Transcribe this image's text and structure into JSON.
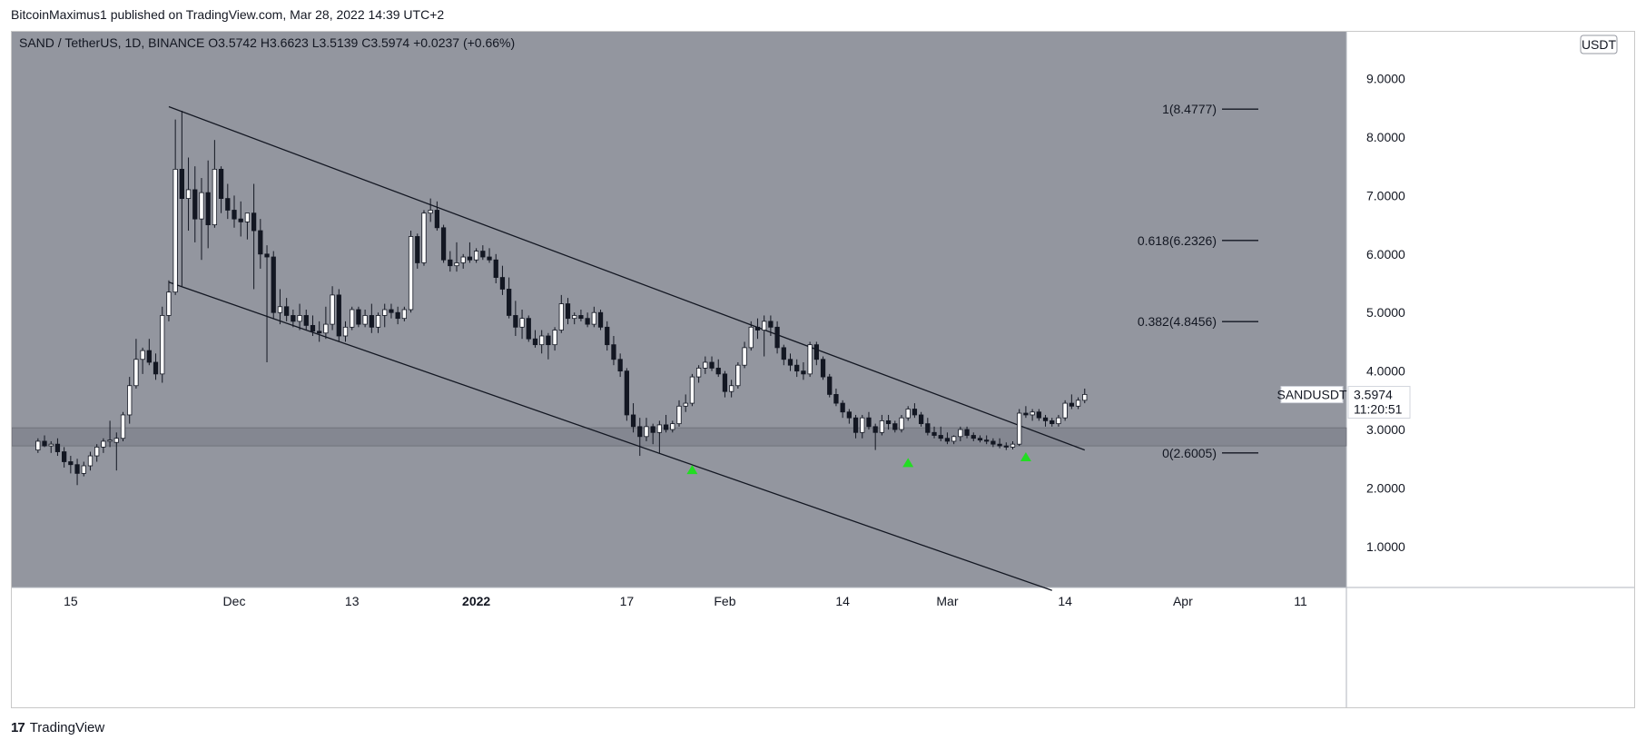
{
  "header": {
    "publisher_line": "BitcoinMaximus1 published on TradingView.com, Mar 28, 2022 14:39 UTC+2"
  },
  "footer": {
    "brand": "TradingView",
    "logo_glyph": "17"
  },
  "colors": {
    "plot_bg": "#93969f",
    "up_candle": "#ffffff",
    "down_candle": "#131722",
    "support_zone": "#7f838d",
    "trend_line": "#131722",
    "arrow": "#22dd22",
    "price_label_bg": "#ffffff"
  },
  "chart_data": {
    "type": "candlestick",
    "symbol": "SAND / TetherUS, 1D, BINANCE",
    "ohlc_legend": {
      "o_label": "O",
      "o": "3.5742",
      "h_label": "H",
      "h": "3.6623",
      "l_label": "L",
      "l": "3.5139",
      "c_label": "C",
      "c": "3.5974",
      "change": "+0.0237 (+0.66%)"
    },
    "currency_badge": "USDT",
    "price_label": {
      "ticker": "SANDUSDT",
      "price": "3.5974",
      "countdown": "11:20:51"
    },
    "y_axis": {
      "range": [
        0.3,
        9.8
      ],
      "ticks": [
        "9.0000",
        "8.0000",
        "7.0000",
        "6.0000",
        "5.0000",
        "4.0000",
        "3.0000",
        "2.0000",
        "1.0000"
      ],
      "tick_values": [
        9,
        8,
        7,
        6,
        5,
        4,
        3,
        2,
        1
      ]
    },
    "x_axis": {
      "ticks": [
        "15",
        "Dec",
        "13",
        "2022",
        "17",
        "Feb",
        "14",
        "Mar",
        "14",
        "Apr",
        "11"
      ],
      "tick_bar_index": [
        5,
        30,
        48,
        67,
        90,
        105,
        123,
        139,
        157,
        175,
        193
      ],
      "bold_ticks": [
        "2022"
      ],
      "bar_range": [
        -4,
        200
      ]
    },
    "fib_levels": [
      {
        "label": "1(8.4777)",
        "value": 8.4777
      },
      {
        "label": "0.618(6.2326)",
        "value": 6.2326
      },
      {
        "label": "0.382(4.8456)",
        "value": 4.8456
      },
      {
        "label": "0(2.6005)",
        "value": 2.6005
      }
    ],
    "support_zone": {
      "low": 2.72,
      "high": 3.03
    },
    "channel": {
      "upper_line": {
        "from": [
          20,
          8.52
        ],
        "to": [
          160,
          2.65
        ]
      },
      "lower_line": {
        "from": [
          20,
          5.52
        ],
        "to": [
          155,
          0.25
        ]
      }
    },
    "arrows_bar_index": [
      100,
      133,
      151
    ],
    "arrows_value": [
      2.3,
      2.42,
      2.52
    ],
    "candles": [
      [
        2.65,
        2.85,
        2.6,
        2.8
      ],
      [
        2.8,
        2.9,
        2.7,
        2.72
      ],
      [
        2.72,
        2.8,
        2.6,
        2.75
      ],
      [
        2.75,
        2.85,
        2.55,
        2.62
      ],
      [
        2.62,
        2.7,
        2.35,
        2.45
      ],
      [
        2.45,
        2.55,
        2.25,
        2.4
      ],
      [
        2.4,
        2.5,
        2.05,
        2.25
      ],
      [
        2.25,
        2.45,
        2.2,
        2.38
      ],
      [
        2.38,
        2.62,
        2.3,
        2.55
      ],
      [
        2.55,
        2.75,
        2.45,
        2.7
      ],
      [
        2.7,
        2.85,
        2.6,
        2.8
      ],
      [
        2.8,
        3.15,
        2.7,
        2.82
      ],
      [
        2.78,
        2.95,
        2.3,
        2.85
      ],
      [
        2.85,
        3.3,
        2.8,
        3.25
      ],
      [
        3.25,
        3.9,
        3.1,
        3.75
      ],
      [
        3.75,
        4.55,
        3.7,
        4.2
      ],
      [
        4.2,
        4.4,
        3.95,
        4.35
      ],
      [
        4.35,
        4.55,
        4.1,
        4.15
      ],
      [
        4.15,
        4.3,
        3.85,
        3.95
      ],
      [
        3.95,
        5.1,
        3.8,
        4.95
      ],
      [
        4.95,
        5.55,
        4.85,
        5.35
      ],
      [
        5.35,
        8.3,
        5.3,
        7.45
      ],
      [
        7.45,
        8.45,
        5.45,
        6.95
      ],
      [
        6.95,
        7.65,
        6.4,
        7.1
      ],
      [
        7.1,
        7.5,
        6.2,
        6.6
      ],
      [
        6.6,
        7.3,
        5.9,
        7.05
      ],
      [
        7.05,
        7.6,
        6.1,
        6.5
      ],
      [
        6.5,
        7.95,
        6.45,
        7.45
      ],
      [
        7.45,
        7.5,
        6.7,
        6.95
      ],
      [
        6.95,
        7.2,
        6.6,
        6.75
      ],
      [
        6.75,
        7.0,
        6.45,
        6.6
      ],
      [
        6.6,
        6.9,
        6.3,
        6.55
      ],
      [
        6.55,
        6.7,
        6.25,
        6.7
      ],
      [
        6.7,
        7.2,
        5.4,
        6.4
      ],
      [
        6.4,
        6.6,
        5.75,
        6.0
      ],
      [
        6.0,
        6.15,
        4.15,
        5.95
      ],
      [
        5.95,
        6.05,
        4.9,
        5.0
      ],
      [
        5.0,
        5.4,
        4.8,
        5.1
      ],
      [
        5.1,
        5.25,
        4.85,
        4.95
      ],
      [
        4.95,
        5.05,
        4.75,
        4.85
      ],
      [
        4.85,
        5.15,
        4.7,
        4.95
      ],
      [
        4.95,
        5.05,
        4.7,
        4.78
      ],
      [
        4.78,
        4.95,
        4.6,
        4.68
      ],
      [
        4.68,
        4.85,
        4.5,
        4.65
      ],
      [
        4.65,
        5.1,
        4.55,
        4.8
      ],
      [
        4.8,
        5.45,
        4.7,
        5.3
      ],
      [
        5.3,
        5.4,
        4.5,
        4.6
      ],
      [
        4.6,
        4.85,
        4.5,
        4.75
      ],
      [
        4.75,
        5.1,
        4.7,
        5.05
      ],
      [
        5.05,
        5.1,
        4.75,
        4.8
      ],
      [
        4.8,
        5.05,
        4.75,
        4.95
      ],
      [
        4.95,
        5.15,
        4.65,
        4.75
      ],
      [
        4.75,
        5.0,
        4.65,
        4.95
      ],
      [
        4.95,
        5.15,
        4.75,
        5.05
      ],
      [
        5.05,
        5.15,
        4.9,
        5.0
      ],
      [
        5.0,
        5.1,
        4.8,
        4.9
      ],
      [
        4.9,
        5.1,
        4.85,
        5.05
      ],
      [
        5.05,
        6.4,
        5.0,
        6.3
      ],
      [
        6.3,
        6.35,
        5.75,
        5.85
      ],
      [
        5.85,
        6.75,
        5.8,
        6.7
      ],
      [
        6.7,
        6.95,
        6.55,
        6.75
      ],
      [
        6.75,
        6.9,
        6.4,
        6.45
      ],
      [
        6.45,
        6.5,
        5.85,
        5.9
      ],
      [
        5.9,
        6.05,
        5.7,
        5.8
      ],
      [
        5.8,
        6.2,
        5.7,
        5.85
      ],
      [
        5.85,
        6.0,
        5.75,
        5.95
      ],
      [
        5.95,
        6.2,
        5.85,
        5.9
      ],
      [
        5.9,
        6.1,
        5.85,
        6.05
      ],
      [
        6.05,
        6.15,
        5.9,
        5.95
      ],
      [
        5.95,
        6.1,
        5.85,
        5.9
      ],
      [
        5.9,
        6.0,
        5.5,
        5.6
      ],
      [
        5.6,
        5.8,
        5.3,
        5.4
      ],
      [
        5.4,
        5.6,
        4.9,
        4.95
      ],
      [
        4.95,
        5.2,
        4.6,
        4.75
      ],
      [
        4.75,
        5.05,
        4.55,
        4.9
      ],
      [
        4.9,
        4.95,
        4.5,
        4.55
      ],
      [
        4.55,
        4.7,
        4.4,
        4.45
      ],
      [
        4.45,
        4.7,
        4.3,
        4.6
      ],
      [
        4.6,
        4.65,
        4.2,
        4.45
      ],
      [
        4.45,
        4.75,
        4.35,
        4.7
      ],
      [
        4.7,
        5.3,
        4.65,
        5.15
      ],
      [
        5.15,
        5.25,
        4.8,
        4.9
      ],
      [
        4.9,
        5.0,
        4.8,
        4.95
      ],
      [
        4.95,
        5.05,
        4.85,
        4.9
      ],
      [
        4.9,
        5.0,
        4.75,
        4.8
      ],
      [
        4.8,
        5.1,
        4.75,
        5.0
      ],
      [
        5.0,
        5.05,
        4.7,
        4.75
      ],
      [
        4.75,
        4.85,
        4.35,
        4.45
      ],
      [
        4.45,
        4.6,
        4.1,
        4.2
      ],
      [
        4.2,
        4.3,
        3.9,
        4.0
      ],
      [
        4.0,
        4.05,
        3.15,
        3.25
      ],
      [
        3.25,
        3.45,
        2.95,
        3.05
      ],
      [
        3.05,
        3.2,
        2.55,
        2.88
      ],
      [
        2.88,
        3.2,
        2.8,
        3.05
      ],
      [
        3.05,
        3.1,
        2.75,
        2.95
      ],
      [
        2.95,
        3.15,
        2.6,
        3.08
      ],
      [
        3.08,
        3.25,
        2.95,
        3.0
      ],
      [
        3.0,
        3.15,
        2.95,
        3.1
      ],
      [
        3.1,
        3.5,
        3.05,
        3.4
      ],
      [
        3.4,
        3.6,
        3.3,
        3.45
      ],
      [
        3.45,
        3.95,
        3.4,
        3.9
      ],
      [
        3.9,
        4.1,
        3.8,
        4.05
      ],
      [
        4.05,
        4.25,
        3.95,
        4.15
      ],
      [
        4.15,
        4.25,
        4.0,
        4.05
      ],
      [
        4.05,
        4.2,
        3.9,
        3.95
      ],
      [
        3.95,
        4.0,
        3.55,
        3.65
      ],
      [
        3.65,
        3.85,
        3.55,
        3.75
      ],
      [
        3.75,
        4.15,
        3.7,
        4.1
      ],
      [
        4.1,
        4.5,
        4.05,
        4.4
      ],
      [
        4.4,
        4.85,
        4.35,
        4.75
      ],
      [
        4.75,
        4.9,
        4.55,
        4.7
      ],
      [
        4.7,
        4.95,
        4.25,
        4.85
      ],
      [
        4.85,
        4.95,
        4.6,
        4.75
      ],
      [
        4.75,
        4.85,
        4.3,
        4.4
      ],
      [
        4.4,
        4.45,
        4.1,
        4.2
      ],
      [
        4.2,
        4.3,
        4.0,
        4.1
      ],
      [
        4.1,
        4.2,
        3.9,
        4.0
      ],
      [
        4.0,
        4.15,
        3.85,
        3.95
      ],
      [
        3.95,
        4.5,
        3.9,
        4.45
      ],
      [
        4.45,
        4.5,
        4.1,
        4.2
      ],
      [
        4.2,
        4.25,
        3.85,
        3.9
      ],
      [
        3.9,
        3.95,
        3.55,
        3.6
      ],
      [
        3.6,
        3.7,
        3.4,
        3.45
      ],
      [
        3.45,
        3.5,
        3.2,
        3.3
      ],
      [
        3.3,
        3.35,
        3.1,
        3.2
      ],
      [
        3.2,
        3.25,
        2.85,
        2.95
      ],
      [
        2.95,
        3.25,
        2.85,
        3.2
      ],
      [
        3.2,
        3.3,
        3.0,
        3.05
      ],
      [
        3.05,
        3.1,
        2.65,
        2.95
      ],
      [
        2.95,
        3.25,
        2.9,
        3.15
      ],
      [
        3.15,
        3.25,
        3.0,
        3.1
      ],
      [
        3.1,
        3.15,
        2.95,
        3.0
      ],
      [
        3.0,
        3.25,
        2.95,
        3.2
      ],
      [
        3.2,
        3.4,
        3.15,
        3.35
      ],
      [
        3.35,
        3.45,
        3.2,
        3.25
      ],
      [
        3.25,
        3.3,
        3.05,
        3.1
      ],
      [
        3.1,
        3.2,
        2.9,
        2.95
      ],
      [
        2.95,
        3.05,
        2.85,
        2.9
      ],
      [
        2.9,
        3.05,
        2.8,
        2.85
      ],
      [
        2.85,
        2.95,
        2.75,
        2.8
      ],
      [
        2.8,
        2.9,
        2.75,
        2.88
      ],
      [
        2.88,
        3.05,
        2.8,
        3.0
      ],
      [
        3.0,
        3.05,
        2.85,
        2.9
      ],
      [
        2.9,
        2.95,
        2.8,
        2.85
      ],
      [
        2.85,
        2.9,
        2.78,
        2.82
      ],
      [
        2.82,
        2.9,
        2.75,
        2.8
      ],
      [
        2.8,
        2.85,
        2.7,
        2.75
      ],
      [
        2.75,
        2.85,
        2.68,
        2.72
      ],
      [
        2.72,
        2.78,
        2.65,
        2.7
      ],
      [
        2.7,
        2.8,
        2.66,
        2.75
      ],
      [
        2.75,
        3.35,
        2.72,
        3.28
      ],
      [
        3.28,
        3.4,
        3.2,
        3.25
      ],
      [
        3.25,
        3.35,
        3.15,
        3.3
      ],
      [
        3.3,
        3.35,
        3.15,
        3.2
      ],
      [
        3.2,
        3.25,
        3.05,
        3.15
      ],
      [
        3.15,
        3.2,
        3.05,
        3.1
      ],
      [
        3.1,
        3.25,
        3.05,
        3.2
      ],
      [
        3.2,
        3.5,
        3.15,
        3.45
      ],
      [
        3.45,
        3.6,
        3.35,
        3.4
      ],
      [
        3.4,
        3.55,
        3.35,
        3.5
      ],
      [
        3.5,
        3.7,
        3.45,
        3.6
      ]
    ]
  }
}
